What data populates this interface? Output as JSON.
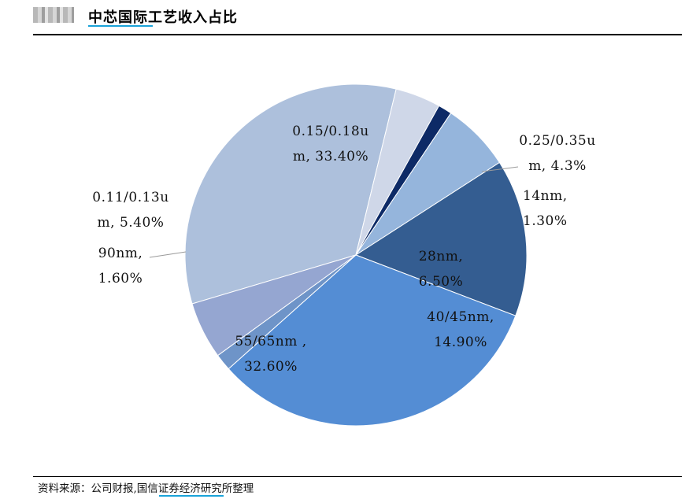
{
  "header": {
    "title": "中芯国际工艺收入占比"
  },
  "chart_data": {
    "type": "pie",
    "title": "中芯国际工艺收入占比",
    "slices": [
      {
        "label": "0.15/0.18um",
        "value": 33.4,
        "display_lines": [
          "0.15/0.18u",
          "m, 33.40%"
        ],
        "color": "#adc0dc"
      },
      {
        "label": "0.25/0.35um",
        "value": 4.3,
        "display_lines": [
          "0.25/0.35u",
          "m, 4.3%"
        ],
        "color": "#cfd7e8"
      },
      {
        "label": "14nm",
        "value": 1.3,
        "display_lines": [
          "14nm,",
          "1.30%"
        ],
        "color": "#0d2a66"
      },
      {
        "label": "28nm",
        "value": 6.5,
        "display_lines": [
          "28nm,",
          "6.50%"
        ],
        "color": "#95b5dc"
      },
      {
        "label": "40/45nm",
        "value": 14.9,
        "display_lines": [
          "40/45nm,",
          "14.90%"
        ],
        "color": "#345d91"
      },
      {
        "label": "55/65nm",
        "value": 32.6,
        "display_lines": [
          "55/65nm ,",
          "32.60%"
        ],
        "color": "#548dd4"
      },
      {
        "label": "90nm",
        "value": 1.6,
        "display_lines": [
          "90nm,",
          "1.60%"
        ],
        "color": "#6e94c8"
      },
      {
        "label": "0.11/0.13um",
        "value": 5.4,
        "display_lines": [
          "0.11/0.13u",
          "m, 5.40%"
        ],
        "color": "#95a6d1"
      }
    ]
  },
  "footer": {
    "source_prefix": "资料来源：公司财报,",
    "source_org": "国信证券",
    "source_suffix": "经济研究所整理"
  }
}
